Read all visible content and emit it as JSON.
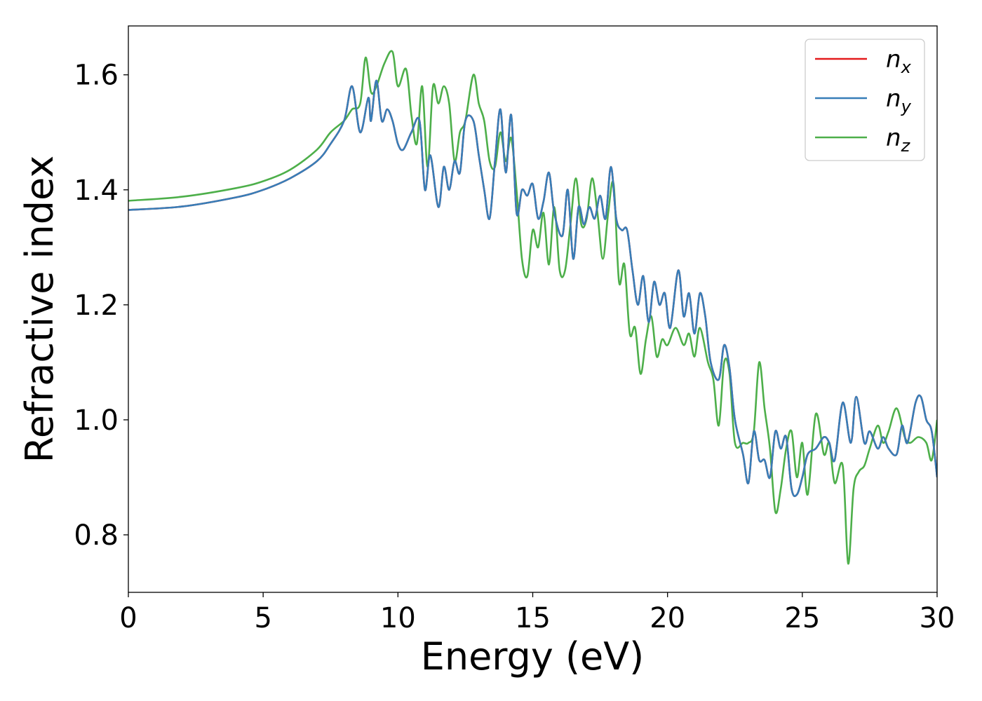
{
  "chart_data": {
    "type": "line",
    "title": "",
    "xlabel": "Energy (eV)",
    "ylabel": "Refractive index",
    "xlim": [
      0,
      30
    ],
    "ylim": [
      0.7,
      1.685
    ],
    "xticks": [
      0,
      5,
      10,
      15,
      20,
      25,
      30
    ],
    "xtick_labels": [
      "0",
      "5",
      "10",
      "15",
      "20",
      "25",
      "30"
    ],
    "yticks": [
      0.8,
      1.0,
      1.2,
      1.4,
      1.6
    ],
    "ytick_labels": [
      "0.8",
      "1.0",
      "1.2",
      "1.4",
      "1.6"
    ],
    "grid": false,
    "legend_position": "top-right",
    "series": [
      {
        "name": "n_x",
        "label_base": "n",
        "label_sub": "x",
        "color": "#e41a1c",
        "x": [
          0,
          2,
          4,
          5,
          6,
          7,
          7.5,
          8,
          8.3,
          8.6,
          8.9,
          9.0,
          9.2,
          9.4,
          9.6,
          9.8,
          10.0,
          10.2,
          10.5,
          10.8,
          11.0,
          11.2,
          11.5,
          11.7,
          11.9,
          12.1,
          12.3,
          12.5,
          12.8,
          13.0,
          13.2,
          13.4,
          13.6,
          13.8,
          14.0,
          14.2,
          14.4,
          14.6,
          14.8,
          15.0,
          15.2,
          15.4,
          15.6,
          15.8,
          16.1,
          16.3,
          16.5,
          16.7,
          16.9,
          17.1,
          17.3,
          17.5,
          17.7,
          17.9,
          18.1,
          18.3,
          18.5,
          18.7,
          18.9,
          19.1,
          19.3,
          19.5,
          19.7,
          19.9,
          20.1,
          20.4,
          20.6,
          20.8,
          21.0,
          21.2,
          21.4,
          21.6,
          21.9,
          22.1,
          22.3,
          22.5,
          22.8,
          23.0,
          23.2,
          23.4,
          23.6,
          23.8,
          24.0,
          24.2,
          24.4,
          24.6,
          24.8,
          25.0,
          25.2,
          25.5,
          25.8,
          26.0,
          26.2,
          26.5,
          26.8,
          27.0,
          27.3,
          27.5,
          27.8,
          28.0,
          28.2,
          28.5,
          28.7,
          28.9,
          29.2,
          29.4,
          29.6,
          29.8,
          30.0
        ],
        "y": [
          1.365,
          1.371,
          1.387,
          1.4,
          1.42,
          1.45,
          1.48,
          1.52,
          1.58,
          1.5,
          1.56,
          1.52,
          1.59,
          1.52,
          1.54,
          1.52,
          1.48,
          1.47,
          1.5,
          1.52,
          1.4,
          1.46,
          1.37,
          1.44,
          1.4,
          1.45,
          1.43,
          1.52,
          1.52,
          1.46,
          1.4,
          1.35,
          1.45,
          1.54,
          1.43,
          1.53,
          1.36,
          1.4,
          1.39,
          1.41,
          1.35,
          1.38,
          1.43,
          1.36,
          1.32,
          1.4,
          1.28,
          1.37,
          1.34,
          1.37,
          1.35,
          1.39,
          1.35,
          1.44,
          1.35,
          1.33,
          1.33,
          1.26,
          1.2,
          1.25,
          1.17,
          1.24,
          1.2,
          1.22,
          1.16,
          1.26,
          1.18,
          1.22,
          1.15,
          1.22,
          1.18,
          1.1,
          1.07,
          1.13,
          1.09,
          1.0,
          0.94,
          0.89,
          0.98,
          0.93,
          0.93,
          0.9,
          0.98,
          0.95,
          0.97,
          0.88,
          0.87,
          0.9,
          0.94,
          0.95,
          0.97,
          0.96,
          0.93,
          1.03,
          0.96,
          1.04,
          0.96,
          0.98,
          0.95,
          0.97,
          0.95,
          0.94,
          0.99,
          0.96,
          1.03,
          1.04,
          1.0,
          0.98,
          0.9
        ]
      },
      {
        "name": "n_y",
        "label_base": "n",
        "label_sub": "y",
        "color": "#377eb8",
        "x": [
          0,
          2,
          4,
          5,
          6,
          7,
          7.5,
          8,
          8.3,
          8.6,
          8.9,
          9.0,
          9.2,
          9.4,
          9.6,
          9.8,
          10.0,
          10.2,
          10.5,
          10.8,
          11.0,
          11.2,
          11.5,
          11.7,
          11.9,
          12.1,
          12.3,
          12.5,
          12.8,
          13.0,
          13.2,
          13.4,
          13.6,
          13.8,
          14.0,
          14.2,
          14.4,
          14.6,
          14.8,
          15.0,
          15.2,
          15.4,
          15.6,
          15.8,
          16.1,
          16.3,
          16.5,
          16.7,
          16.9,
          17.1,
          17.3,
          17.5,
          17.7,
          17.9,
          18.1,
          18.3,
          18.5,
          18.7,
          18.9,
          19.1,
          19.3,
          19.5,
          19.7,
          19.9,
          20.1,
          20.4,
          20.6,
          20.8,
          21.0,
          21.2,
          21.4,
          21.6,
          21.9,
          22.1,
          22.3,
          22.5,
          22.8,
          23.0,
          23.2,
          23.4,
          23.6,
          23.8,
          24.0,
          24.2,
          24.4,
          24.6,
          24.8,
          25.0,
          25.2,
          25.5,
          25.8,
          26.0,
          26.2,
          26.5,
          26.8,
          27.0,
          27.3,
          27.5,
          27.8,
          28.0,
          28.2,
          28.5,
          28.7,
          28.9,
          29.2,
          29.4,
          29.6,
          29.8,
          30.0
        ],
        "y": [
          1.365,
          1.371,
          1.387,
          1.4,
          1.42,
          1.45,
          1.48,
          1.52,
          1.58,
          1.5,
          1.56,
          1.52,
          1.59,
          1.52,
          1.54,
          1.52,
          1.48,
          1.47,
          1.5,
          1.52,
          1.4,
          1.46,
          1.37,
          1.44,
          1.4,
          1.45,
          1.43,
          1.52,
          1.52,
          1.46,
          1.4,
          1.35,
          1.45,
          1.54,
          1.43,
          1.53,
          1.36,
          1.4,
          1.39,
          1.41,
          1.35,
          1.38,
          1.43,
          1.36,
          1.32,
          1.4,
          1.28,
          1.37,
          1.34,
          1.37,
          1.35,
          1.39,
          1.35,
          1.44,
          1.35,
          1.33,
          1.33,
          1.26,
          1.2,
          1.25,
          1.17,
          1.24,
          1.2,
          1.22,
          1.16,
          1.26,
          1.18,
          1.22,
          1.15,
          1.22,
          1.18,
          1.1,
          1.07,
          1.13,
          1.09,
          1.0,
          0.94,
          0.89,
          0.98,
          0.93,
          0.93,
          0.9,
          0.98,
          0.95,
          0.97,
          0.88,
          0.87,
          0.9,
          0.94,
          0.95,
          0.97,
          0.96,
          0.93,
          1.03,
          0.96,
          1.04,
          0.96,
          0.98,
          0.95,
          0.97,
          0.95,
          0.94,
          0.99,
          0.96,
          1.03,
          1.04,
          1.0,
          0.98,
          0.9
        ]
      },
      {
        "name": "n_z",
        "label_base": "n",
        "label_sub": "z",
        "color": "#4daf4a",
        "x": [
          0,
          2,
          4,
          5,
          6,
          7,
          7.5,
          8,
          8.3,
          8.6,
          8.8,
          9.0,
          9.2,
          9.5,
          9.8,
          10.0,
          10.3,
          10.5,
          10.7,
          10.9,
          11.1,
          11.3,
          11.5,
          11.7,
          11.9,
          12.1,
          12.3,
          12.5,
          12.8,
          13.0,
          13.2,
          13.4,
          13.6,
          13.8,
          14.0,
          14.2,
          14.4,
          14.6,
          14.8,
          15.0,
          15.2,
          15.4,
          15.6,
          15.8,
          16.0,
          16.2,
          16.4,
          16.6,
          16.8,
          17.0,
          17.2,
          17.4,
          17.6,
          17.8,
          18.0,
          18.2,
          18.4,
          18.6,
          18.8,
          19.0,
          19.2,
          19.4,
          19.6,
          19.8,
          20.0,
          20.3,
          20.6,
          20.8,
          21.0,
          21.2,
          21.5,
          21.7,
          21.9,
          22.1,
          22.3,
          22.5,
          22.8,
          23.0,
          23.2,
          23.4,
          23.6,
          23.8,
          24.0,
          24.2,
          24.4,
          24.6,
          24.8,
          25.0,
          25.2,
          25.5,
          25.8,
          26.0,
          26.2,
          26.5,
          26.7,
          26.9,
          27.1,
          27.3,
          27.5,
          27.8,
          28.0,
          28.2,
          28.5,
          28.8,
          29.0,
          29.3,
          29.6,
          29.8,
          30.0
        ],
        "y": [
          1.381,
          1.388,
          1.403,
          1.415,
          1.435,
          1.47,
          1.5,
          1.52,
          1.54,
          1.55,
          1.63,
          1.57,
          1.58,
          1.62,
          1.64,
          1.58,
          1.61,
          1.53,
          1.48,
          1.58,
          1.44,
          1.58,
          1.55,
          1.58,
          1.55,
          1.45,
          1.5,
          1.52,
          1.6,
          1.55,
          1.52,
          1.45,
          1.44,
          1.5,
          1.45,
          1.49,
          1.4,
          1.28,
          1.25,
          1.33,
          1.3,
          1.36,
          1.27,
          1.37,
          1.26,
          1.26,
          1.34,
          1.42,
          1.34,
          1.35,
          1.42,
          1.36,
          1.28,
          1.36,
          1.41,
          1.24,
          1.27,
          1.15,
          1.16,
          1.08,
          1.14,
          1.18,
          1.11,
          1.14,
          1.13,
          1.16,
          1.13,
          1.15,
          1.11,
          1.16,
          1.1,
          1.07,
          0.99,
          1.1,
          1.08,
          0.96,
          0.96,
          0.96,
          0.98,
          1.1,
          1.02,
          0.95,
          0.84,
          0.88,
          0.95,
          0.98,
          0.9,
          0.96,
          0.87,
          1.01,
          0.94,
          0.96,
          0.89,
          0.92,
          0.75,
          0.88,
          0.91,
          0.92,
          0.95,
          0.99,
          0.96,
          0.98,
          1.02,
          0.97,
          0.96,
          0.97,
          0.96,
          0.93,
          1.0
        ]
      }
    ]
  }
}
